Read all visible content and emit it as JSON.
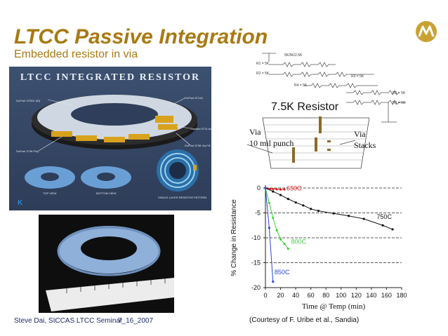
{
  "slide": {
    "title": "LTCC Passive Integration",
    "subtitle": "Embedded resistor in via",
    "footer_left": "Steve Dai, SICCAS LTCC Seminar",
    "footer_date": "7_16_2007",
    "courtesy": "(Courtesy of F. Uribe et al., Sandia)"
  },
  "render_panel": {
    "title": "LTCC INTEGRATED RESISTOR",
    "labels": [
      "DuPont CP831 (IB)",
      "DuPont 5714A",
      "Stacked 5714 Au",
      "DuPont 5738 Via Fill",
      "DuPont 2736 Poly",
      "TOP VIEW",
      "BOTTOM VIEW",
      "SINGLE LAYER RESISTOR PATTERN"
    ]
  },
  "schematic": {
    "top_label": "5K/5K/2.5K",
    "r_labels": [
      "R1 = 5K",
      "R2 = 5K",
      "R3 = 5K",
      "R4 = 5K",
      "R5 = 5K",
      "R6 = 5K"
    ],
    "unit_label": "5K"
  },
  "via_diagram": {
    "heading": "7.5K Resistor",
    "left_line1": "Via",
    "left_line2": "10 mil punch",
    "right_line1": "Via",
    "right_line2": "Stacks"
  },
  "chart_data": {
    "type": "line",
    "xlabel": "Time @ Temp (min)",
    "ylabel": "% Change in Resistance",
    "xlim": [
      0,
      180
    ],
    "ylim": [
      -20,
      0
    ],
    "xticks": [
      0,
      20,
      40,
      60,
      80,
      100,
      120,
      140,
      160,
      180
    ],
    "yticks": [
      0,
      -5,
      -10,
      -15,
      -20
    ],
    "dashed_gridlines": [
      0,
      -5,
      -10,
      -15
    ],
    "series": [
      {
        "name": "650C",
        "color": "#e02020",
        "x": [
          0,
          3,
          6,
          10,
          15,
          20,
          25
        ],
        "y": [
          0,
          -0.1,
          -0.2,
          -0.2,
          -0.25,
          -0.3,
          -0.3
        ]
      },
      {
        "name": "750C",
        "color": "#111111",
        "x": [
          0,
          10,
          20,
          30,
          40,
          50,
          60,
          70,
          90,
          110,
          130,
          155,
          168
        ],
        "y": [
          0,
          -0.7,
          -1.4,
          -2.2,
          -2.9,
          -3.5,
          -4.2,
          -4.6,
          -5.1,
          -5.6,
          -6.2,
          -7.5,
          -8.3
        ]
      },
      {
        "name": "800C",
        "color": "#3fcf3f",
        "x": [
          0,
          5,
          10,
          15,
          20,
          25,
          30
        ],
        "y": [
          0,
          -3.0,
          -6.0,
          -8.5,
          -10.3,
          -11.2,
          -12.2
        ]
      },
      {
        "name": "850C",
        "color": "#2a47d8",
        "x": [
          0,
          5,
          10
        ],
        "y": [
          0,
          -8.0,
          -18.8
        ]
      }
    ]
  }
}
